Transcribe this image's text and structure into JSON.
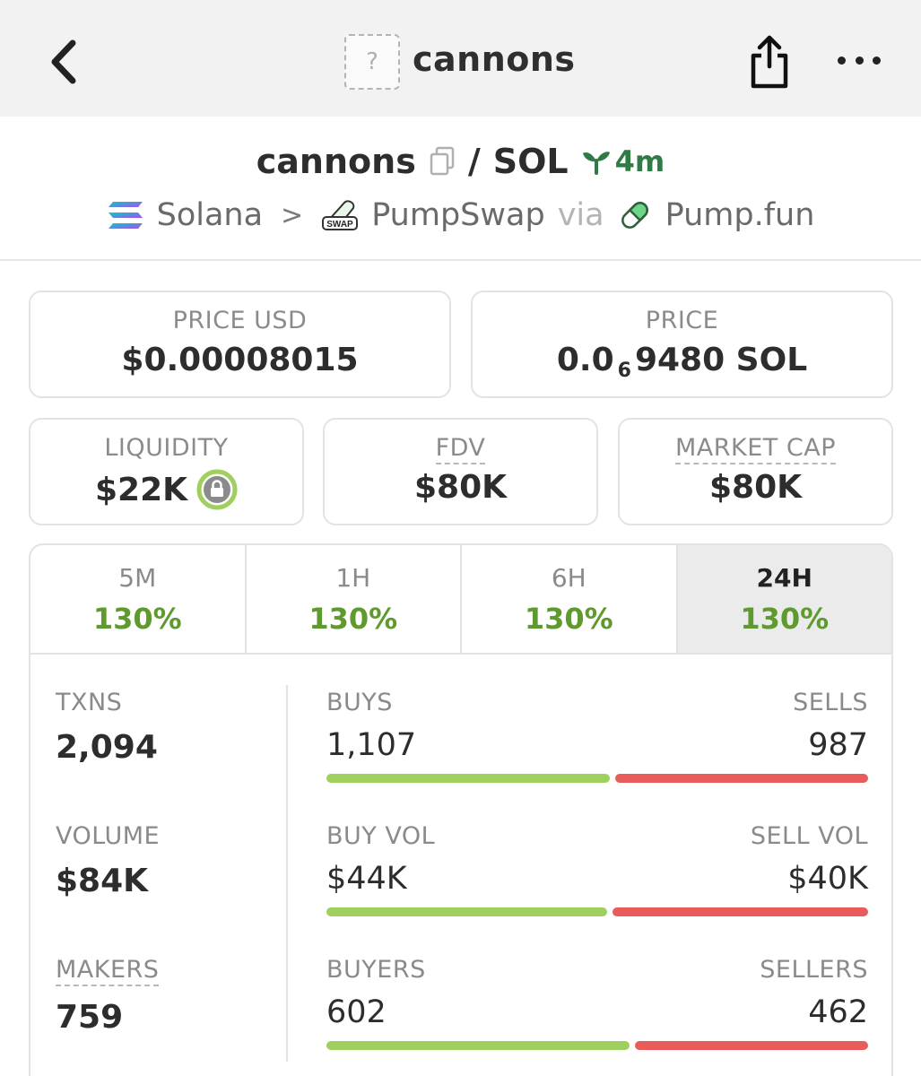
{
  "topbar": {
    "title": "cannons",
    "thumb_placeholder": "?"
  },
  "pair": {
    "base": "cannons",
    "quote": "SOL",
    "age": "4m"
  },
  "route": {
    "chain": "Solana",
    "dex": "PumpSwap",
    "via": "via",
    "launchpad": "Pump.fun"
  },
  "price_usd": {
    "label": "PRICE USD",
    "value": "$0.00008015"
  },
  "price_native": {
    "label": "PRICE",
    "prefix": "0.0",
    "zeros": "6",
    "suffix": "9480 SOL"
  },
  "liquidity": {
    "label": "LIQUIDITY",
    "value": "$22K"
  },
  "fdv": {
    "label": "FDV",
    "value": "$80K"
  },
  "market_cap": {
    "label": "MARKET CAP",
    "value": "$80K"
  },
  "tabs": [
    {
      "label": "5M",
      "change": "130%"
    },
    {
      "label": "1H",
      "change": "130%"
    },
    {
      "label": "6H",
      "change": "130%"
    },
    {
      "label": "24H",
      "change": "130%"
    }
  ],
  "left_stats": {
    "txns": {
      "label": "TXNS",
      "value": "2,094"
    },
    "volume": {
      "label": "VOLUME",
      "value": "$84K"
    },
    "makers": {
      "label": "MAKERS",
      "value": "759"
    }
  },
  "right_stats": {
    "txns": {
      "left_label": "BUYS",
      "right_label": "SELLS",
      "left_value": "1,107",
      "right_value": "987",
      "left_fraction": 0.529
    },
    "volume": {
      "left_label": "BUY VOL",
      "right_label": "SELL VOL",
      "left_value": "$44K",
      "right_value": "$40K",
      "left_fraction": 0.524
    },
    "makers": {
      "left_label": "BUYERS",
      "right_label": "SELLERS",
      "left_value": "602",
      "right_value": "462",
      "left_fraction": 0.566
    }
  },
  "colors": {
    "positive": "#5f9a2e",
    "buy_bar": "#9fcf5c",
    "sell_bar": "#e85c5c",
    "age_green": "#2f7a45"
  }
}
